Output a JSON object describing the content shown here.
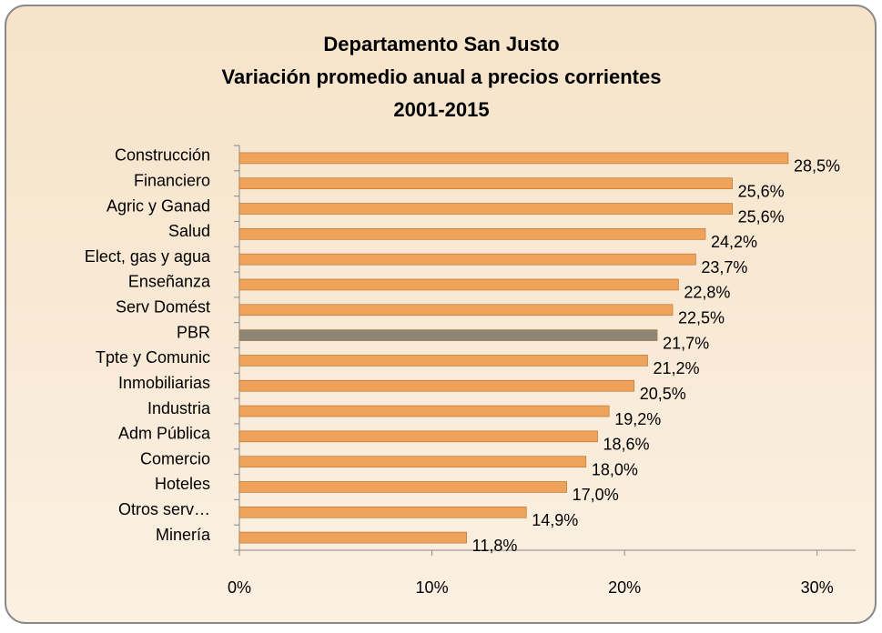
{
  "chart_data": {
    "type": "hbar",
    "title": [
      "Departamento San Justo",
      "Variación promedio anual a precios corrientes",
      "2001-2015"
    ],
    "categories": [
      "Construcción",
      "Financiero",
      "Agric y Ganad",
      "Salud",
      "Elect, gas y agua",
      "Enseñanza",
      "Serv Domést",
      "PBR",
      "Tpte y Comunic",
      "Inmobiliarias",
      "Industria",
      "Adm Pública",
      "Comercio",
      "Hoteles",
      "Otros serv…",
      "Minería"
    ],
    "values": [
      28.5,
      25.6,
      25.6,
      24.2,
      23.7,
      22.8,
      22.5,
      21.7,
      21.2,
      20.5,
      19.2,
      18.6,
      18.0,
      17.0,
      14.9,
      11.8
    ],
    "value_labels": [
      "28,5%",
      "25,6%",
      "25,6%",
      "24,2%",
      "23,7%",
      "22,8%",
      "22,5%",
      "21,7%",
      "21,2%",
      "20,5%",
      "19,2%",
      "18,6%",
      "18,0%",
      "17,0%",
      "14,9%",
      "11,8%"
    ],
    "colors": [
      "#eea25a",
      "#eea25a",
      "#eea25a",
      "#eea25a",
      "#eea25a",
      "#eea25a",
      "#eea25a",
      "#8c8776",
      "#eea25a",
      "#eea25a",
      "#eea25a",
      "#eea25a",
      "#eea25a",
      "#eea25a",
      "#eea25a",
      "#eea25a"
    ],
    "xlim": [
      0,
      32
    ],
    "xticks": [
      {
        "value": 0,
        "label": "0%"
      },
      {
        "value": 10,
        "label": "10%"
      },
      {
        "value": 20,
        "label": "20%"
      },
      {
        "value": 30,
        "label": "30%"
      }
    ]
  }
}
